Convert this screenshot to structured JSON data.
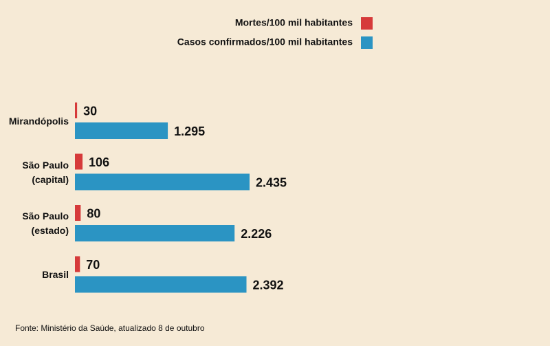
{
  "chart_data": {
    "type": "bar",
    "orientation": "horizontal",
    "categories": [
      "Mirandópolis",
      "São Paulo (capital)",
      "São Paulo (estado)",
      "Brasil"
    ],
    "series": [
      {
        "name": "Mortes/100 mil habitantes",
        "color": "#d63a3a",
        "values": [
          30,
          106,
          80,
          70
        ],
        "value_labels": [
          "30",
          "106",
          "80",
          "70"
        ]
      },
      {
        "name": "Casos confirmados/100 mil habitantes",
        "color": "#2b94c3",
        "values": [
          1295,
          2435,
          2226,
          2392
        ],
        "value_labels": [
          "1.295",
          "2.435",
          "2.226",
          "2.392"
        ]
      }
    ],
    "source": "Fonte: Ministério da Saúde, atualizado 8 de outubro"
  }
}
